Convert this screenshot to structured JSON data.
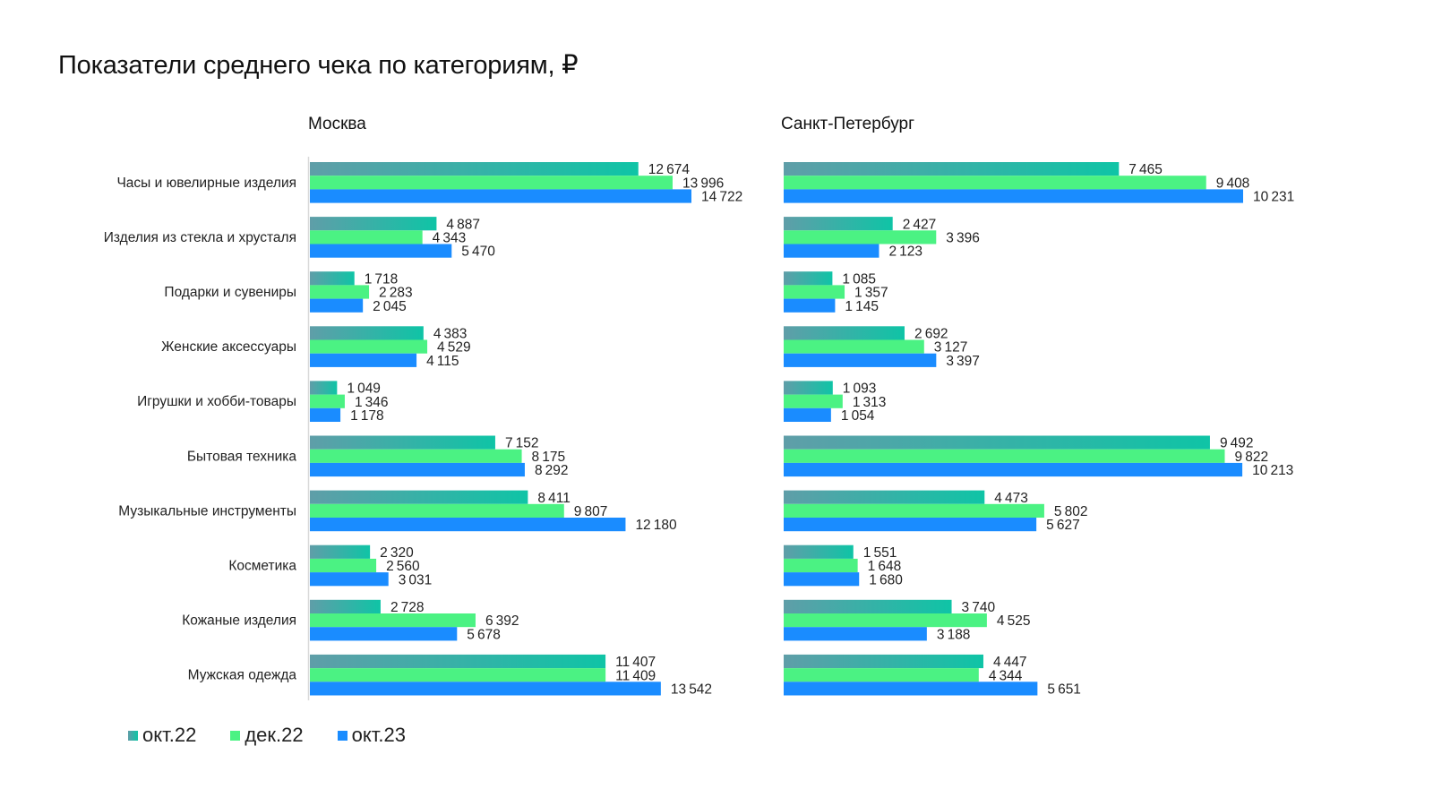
{
  "title": "Показатели среднего чека по категориям, ₽",
  "colors": {
    "okt22_start": "#5f9ea8",
    "okt22_end": "#0fc4a6",
    "dek22": "#4bf283",
    "okt23": "#1a8cff",
    "axis": "#d9d9d9"
  },
  "legend": [
    {
      "label": "окт.22",
      "series": "okt22"
    },
    {
      "label": "дек.22",
      "series": "dek22"
    },
    {
      "label": "окт.23",
      "series": "okt23"
    }
  ],
  "chart_data": [
    {
      "type": "bar",
      "orientation": "horizontal",
      "title": "Москва",
      "xlabel": "",
      "ylabel": "",
      "grid": false,
      "legend_position": "bottom-left",
      "categories": [
        "Часы и ювелирные изделия",
        "Изделия из стекла и хрусталя",
        "Подарки и сувениры",
        "Женские аксессуары",
        "Игрушки и хобби-товары",
        "Бытовая техника",
        "Музыкальные инструменты",
        "Косметика",
        "Кожаные изделия",
        "Мужская одежда"
      ],
      "series": [
        {
          "name": "окт.22",
          "key": "okt22",
          "values": [
            12674,
            4887,
            1718,
            4383,
            1049,
            7152,
            8411,
            2320,
            2728,
            11407
          ]
        },
        {
          "name": "дек.22",
          "key": "dek22",
          "values": [
            13996,
            4343,
            2283,
            4529,
            1346,
            8175,
            9807,
            2560,
            6392,
            11409
          ]
        },
        {
          "name": "окт.23",
          "key": "okt23",
          "values": [
            14722,
            5470,
            2045,
            4115,
            1178,
            8292,
            12180,
            3031,
            5678,
            13542
          ]
        }
      ],
      "xlim": [
        0,
        16000
      ]
    },
    {
      "type": "bar",
      "orientation": "horizontal",
      "title": "Санкт-Петербург",
      "xlabel": "",
      "ylabel": "",
      "grid": false,
      "legend_position": "bottom-left",
      "categories": [
        "Часы и ювелирные изделия",
        "Изделия из стекла и хрусталя",
        "Подарки и сувениры",
        "Женские аксессуары",
        "Игрушки и хобби-товары",
        "Бытовая техника",
        "Музыкальные инструменты",
        "Косметика",
        "Кожаные изделия",
        "Мужская одежда"
      ],
      "series": [
        {
          "name": "окт.22",
          "key": "okt22",
          "values": [
            7465,
            2427,
            1085,
            2692,
            1093,
            9492,
            4473,
            1551,
            3740,
            4447
          ]
        },
        {
          "name": "дек.22",
          "key": "dek22",
          "values": [
            9408,
            3396,
            1357,
            3127,
            1313,
            9822,
            5802,
            1648,
            4525,
            4344
          ]
        },
        {
          "name": "окт.23",
          "key": "okt23",
          "values": [
            10231,
            2123,
            1145,
            3397,
            1054,
            10213,
            5627,
            1680,
            3188,
            5651
          ]
        }
      ],
      "xlim": [
        0,
        12000
      ]
    }
  ]
}
